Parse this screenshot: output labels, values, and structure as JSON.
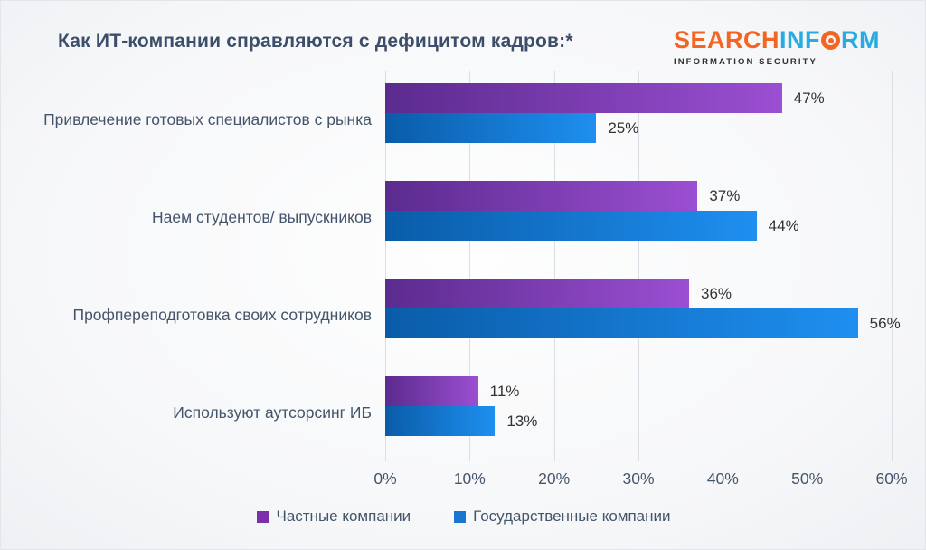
{
  "chart_data": {
    "type": "bar",
    "orientation": "horizontal",
    "title": "Как ИТ-компании справляются с дефицитом кадров:*",
    "categories": [
      "Привлечение готовых специалистов с рынка",
      "Наем студентов/ выпускников",
      "Профпереподготовка своих сотрудников",
      "Используют аутсорсинг ИБ"
    ],
    "series": [
      {
        "name": "Частные компании",
        "values": [
          47,
          37,
          36,
          11
        ],
        "labels": [
          "47%",
          "37%",
          "36%",
          "11%"
        ],
        "gradient_start": "#5B2B8E",
        "gradient_end": "#9B4FD2",
        "legend_color": "#7B2FA8"
      },
      {
        "name": "Государственные компании",
        "values": [
          25,
          44,
          56,
          13
        ],
        "labels": [
          "25%",
          "44%",
          "56%",
          "13%"
        ],
        "gradient_start": "#0A5CA8",
        "gradient_end": "#1E8FF0",
        "legend_color": "#1B76D2"
      }
    ],
    "x_ticks": [
      "0%",
      "10%",
      "20%",
      "30%",
      "40%",
      "50%",
      "60%"
    ],
    "xlim": [
      0,
      60
    ],
    "grid": true,
    "legend_position": "bottom",
    "value_label_color": "#333333",
    "gridline_color": "#DADEE5"
  },
  "logo": {
    "part_search": "SEARCH",
    "part_inf": "INF",
    "part_rm": "RM",
    "o_icon": "target-o-icon",
    "subtitle": "INFORMATION SECURITY",
    "orange": "#F26522",
    "blue": "#29ABE2"
  }
}
